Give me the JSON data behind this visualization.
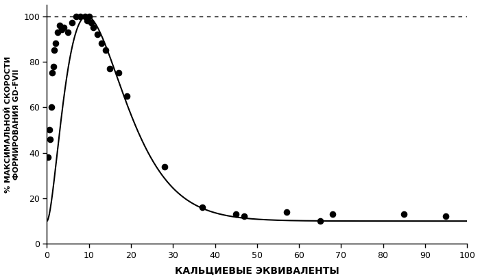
{
  "scatter_x": [
    0.3,
    0.5,
    0.7,
    1.0,
    1.3,
    1.5,
    1.8,
    2.0,
    2.5,
    3.0,
    3.5,
    4.0,
    5.0,
    6.0,
    7.0,
    8.0,
    9.0,
    9.5,
    10.0,
    10.5,
    11.0,
    12.0,
    13.0,
    14.0,
    15.0,
    17.0,
    19.0,
    28.0,
    37.0,
    45.0,
    47.0,
    57.0,
    65.0,
    68.0,
    85.0,
    95.0
  ],
  "scatter_y": [
    38,
    50,
    46,
    60,
    75,
    78,
    85,
    88,
    93,
    96,
    94,
    95,
    93,
    97,
    100,
    100,
    100,
    98,
    100,
    97,
    95,
    92,
    88,
    85,
    77,
    75,
    65,
    34,
    16,
    13,
    12,
    14,
    10,
    13,
    13,
    12
  ],
  "a_param": 1.8,
  "b_param": 0.19,
  "baseline": 10.0,
  "xlabel": "КАЛЬЦИЕВЫЕ ЭКВИВАЛЕНТЫ",
  "ylabel": "% МАКСИМАЛЬНОЙ СКОРОСТИ\nФОРМИРОВАНИЯ GD-FVII",
  "xlim": [
    0,
    100
  ],
  "ylim": [
    0,
    105
  ],
  "xticks": [
    0,
    10,
    20,
    30,
    40,
    50,
    60,
    70,
    80,
    90,
    100
  ],
  "yticks": [
    0,
    20,
    40,
    60,
    80,
    100
  ],
  "dotted_line_y": 100,
  "bg_color": "#ffffff",
  "line_color": "#000000",
  "scatter_color": "#000000",
  "scatter_size": 35,
  "figsize": [
    7.0,
    4.08
  ],
  "dpi": 100
}
